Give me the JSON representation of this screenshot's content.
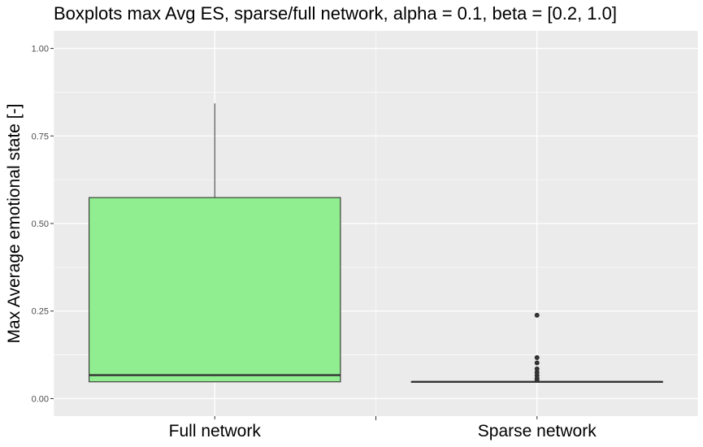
{
  "chart_data": {
    "type": "boxplot",
    "title": "Boxplots max Avg ES, sparse/full network, alpha = 0.1, beta = [0.2, 1.0]",
    "xlabel": "",
    "ylabel": "Max Average emotional state [-]",
    "ylim": [
      -0.05,
      1.05
    ],
    "yticks": [
      0.0,
      0.25,
      0.5,
      0.75,
      1.0
    ],
    "ytick_labels": [
      "0.00",
      "0.25",
      "0.50",
      "0.75",
      "1.00"
    ],
    "categories": [
      "Full network",
      "Sparse network"
    ],
    "grid": true,
    "box_fill": "#90EE90",
    "panel_background": "#EBEBEB",
    "boxes": [
      {
        "category": "Full network",
        "whisker_low": 0.048,
        "q1": 0.048,
        "median": 0.067,
        "q3": 0.574,
        "whisker_high": 0.843,
        "outliers": []
      },
      {
        "category": "Sparse network",
        "whisker_low": 0.048,
        "q1": 0.048,
        "median": 0.048,
        "q3": 0.048,
        "whisker_high": 0.048,
        "outliers": [
          0.238,
          0.117,
          0.102,
          0.085,
          0.075,
          0.066,
          0.058,
          0.052
        ]
      }
    ]
  }
}
